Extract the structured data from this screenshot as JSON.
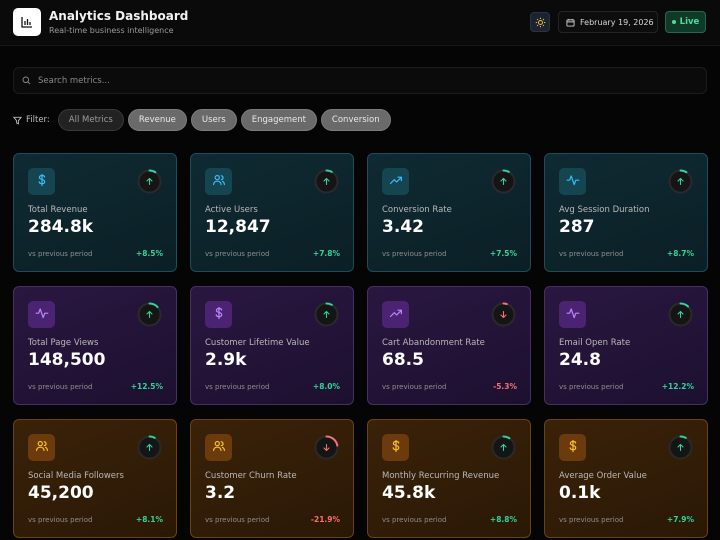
{
  "header": {
    "title": "Analytics Dashboard",
    "subtitle": "Real-time business intelligence",
    "date": "February 19, 2026",
    "live_label": "Live"
  },
  "search": {
    "placeholder": "Search metrics..."
  },
  "filters": {
    "label": "Filter:",
    "chips": [
      "All Metrics",
      "Revenue",
      "Users",
      "Engagement",
      "Conversion"
    ],
    "active": "All Metrics"
  },
  "colors": {
    "accent_up": "#34d399",
    "accent_down": "#f87171",
    "teal_icon": "#38bdf8",
    "purple_icon": "#c084fc",
    "orange_icon": "#fbbf24"
  },
  "cards": [
    {
      "label": "Total Revenue",
      "value": "284.8k",
      "period": "vs previous period",
      "change": "+8.5%",
      "direction": "up",
      "theme": "teal",
      "icon": "dollar-icon",
      "progress": 0.09
    },
    {
      "label": "Active Users",
      "value": "12,847",
      "period": "vs previous period",
      "change": "+7.8%",
      "direction": "up",
      "theme": "teal",
      "icon": "users-icon",
      "progress": 0.08
    },
    {
      "label": "Conversion Rate",
      "value": "3.42",
      "period": "vs previous period",
      "change": "+7.5%",
      "direction": "up",
      "theme": "teal",
      "icon": "trending-up-icon",
      "progress": 0.08
    },
    {
      "label": "Avg Session Duration",
      "value": "287",
      "period": "vs previous period",
      "change": "+8.7%",
      "direction": "up",
      "theme": "teal",
      "icon": "activity-icon",
      "progress": 0.09
    },
    {
      "label": "Total Page Views",
      "value": "148,500",
      "period": "vs previous period",
      "change": "+12.5%",
      "direction": "up",
      "theme": "purple",
      "icon": "activity-icon",
      "progress": 0.13
    },
    {
      "label": "Customer Lifetime Value",
      "value": "2.9k",
      "period": "vs previous period",
      "change": "+8.0%",
      "direction": "up",
      "theme": "purple",
      "icon": "dollar-icon",
      "progress": 0.08
    },
    {
      "label": "Cart Abandonment Rate",
      "value": "68.5",
      "period": "vs previous period",
      "change": "-5.3%",
      "direction": "down",
      "theme": "purple",
      "icon": "trending-up-icon",
      "progress": 0.05
    },
    {
      "label": "Email Open Rate",
      "value": "24.8",
      "period": "vs previous period",
      "change": "+12.2%",
      "direction": "up",
      "theme": "purple",
      "icon": "activity-icon",
      "progress": 0.12
    },
    {
      "label": "Social Media Followers",
      "value": "45,200",
      "period": "vs previous period",
      "change": "+8.1%",
      "direction": "up",
      "theme": "orange",
      "icon": "users-icon",
      "progress": 0.08
    },
    {
      "label": "Customer Churn Rate",
      "value": "3.2",
      "period": "vs previous period",
      "change": "-21.9%",
      "direction": "down",
      "theme": "orange",
      "icon": "users-icon",
      "progress": 0.22
    },
    {
      "label": "Monthly Recurring Revenue",
      "value": "45.8k",
      "period": "vs previous period",
      "change": "+8.8%",
      "direction": "up",
      "theme": "orange",
      "icon": "dollar-icon",
      "progress": 0.09
    },
    {
      "label": "Average Order Value",
      "value": "0.1k",
      "period": "vs previous period",
      "change": "+7.9%",
      "direction": "up",
      "theme": "orange",
      "icon": "dollar-icon",
      "progress": 0.08
    }
  ]
}
